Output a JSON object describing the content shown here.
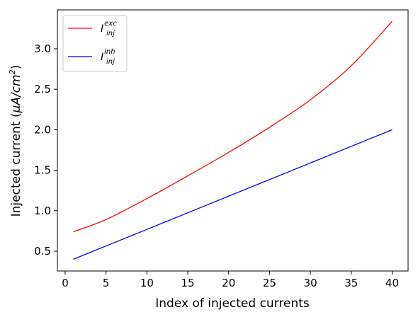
{
  "chart_data": {
    "type": "line",
    "xlabel": "Index of injected currents",
    "ylabel_main": "Injected current (",
    "ylabel_unit_mu": "μA/cm",
    "ylabel_unit_exp": "2",
    "ylabel_close": ")",
    "xlim": [
      -0.95,
      41.95
    ],
    "ylim": [
      0.255,
      3.48
    ],
    "xticks": [
      0,
      5,
      10,
      15,
      20,
      25,
      30,
      35,
      40
    ],
    "xtick_labels": [
      "0",
      "5",
      "10",
      "15",
      "20",
      "25",
      "30",
      "35",
      "40"
    ],
    "yticks": [
      0.5,
      1.0,
      1.5,
      2.0,
      2.5,
      3.0
    ],
    "ytick_labels": [
      "0.5",
      "1.0",
      "1.5",
      "2.0",
      "2.5",
      "3.0"
    ],
    "grid": false,
    "legend_position": "top-left",
    "series": [
      {
        "name_base": "I",
        "name_sup": "exc",
        "name_sub": "inj",
        "color": "#ff0000",
        "x": [
          1,
          5,
          10,
          15,
          20,
          25,
          30,
          35,
          40
        ],
        "y": [
          0.74,
          0.89,
          1.15,
          1.43,
          1.72,
          2.03,
          2.37,
          2.79,
          3.34
        ]
      },
      {
        "name_base": "I",
        "name_sup": "inh",
        "name_sub": "inj",
        "color": "#0000ff",
        "x": [
          1,
          40
        ],
        "y": [
          0.4,
          2.0
        ]
      }
    ]
  }
}
